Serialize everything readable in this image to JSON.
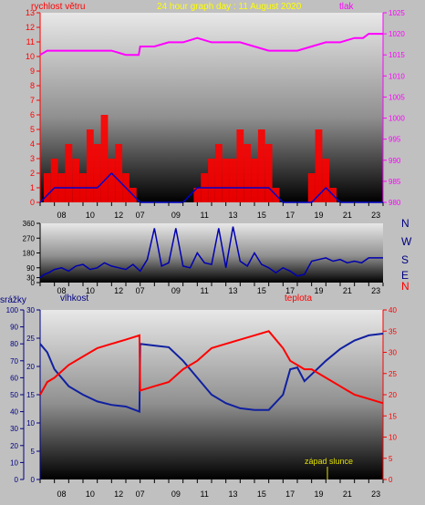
{
  "header": {
    "left_label": "rychlost větru",
    "title": "24 hour graph day : 11 August 2020",
    "right_label": "tlak"
  },
  "panel3_labels": {
    "precip": "srážky",
    "humidity": "vlhkost",
    "temp": "teplota"
  },
  "annotation": "západ slunce",
  "compass_labels": [
    "N",
    "W",
    "S",
    "E",
    "N"
  ],
  "colors": {
    "wind": "#ff0000",
    "wind_avg": "#0000cc",
    "pressure": "#ff00ff",
    "direction": "#0000b0",
    "humidity": "#1020a0",
    "temperature": "#ff0000",
    "title": "#ffff00",
    "sunset_label": "#e0e000"
  },
  "chart_data": [
    {
      "type": "line",
      "name": "wind-and-pressure",
      "x_ticks": [
        "08",
        "10",
        "12",
        "07",
        "09",
        "11",
        "13",
        "15",
        "17",
        "19",
        "21",
        "23"
      ],
      "left_axis": {
        "label": "rychlost větru",
        "ylim": [
          0,
          13
        ],
        "ticks": [
          0,
          1,
          2,
          3,
          4,
          5,
          6,
          7,
          8,
          9,
          10,
          11,
          12,
          13
        ]
      },
      "right_axis": {
        "label": "tlak",
        "ylim": [
          980,
          1025
        ],
        "ticks": [
          980,
          985,
          990,
          995,
          1000,
          1005,
          1010,
          1015,
          1020,
          1025
        ]
      },
      "series": [
        {
          "axis": "right",
          "x": [
            0,
            0.5,
            1,
            2,
            3,
            4,
            5,
            6,
            6.9,
            7,
            8,
            9,
            10,
            11,
            12,
            13,
            14,
            15,
            16,
            17,
            18,
            19,
            20,
            21,
            22,
            22.6,
            23,
            24
          ],
          "values": [
            1015,
            1016,
            1016,
            1016,
            1016,
            1016,
            1016,
            1015,
            1015,
            1017,
            1017,
            1018,
            1018,
            1019,
            1018,
            1018,
            1018,
            1017,
            1016,
            1016,
            1016,
            1017,
            1018,
            1018,
            1019,
            1019,
            1020,
            1020
          ]
        },
        {
          "axis": "left",
          "x": [
            0,
            0.5,
            1,
            1.5,
            2,
            2.5,
            3,
            3.5,
            4,
            4.5,
            5,
            5.5,
            6,
            6.5,
            7,
            7.5,
            8,
            8.5,
            9,
            9.5,
            10,
            10.5,
            11,
            11.5,
            12,
            12.5,
            13,
            13.5,
            14,
            14.5,
            15,
            15.5,
            16,
            16.5,
            17,
            17.5,
            18,
            18.5,
            19,
            19.5,
            20,
            20.5,
            21,
            21.5,
            22,
            22.5,
            23,
            23.5,
            24
          ],
          "values": [
            0,
            2,
            3,
            2,
            4,
            3,
            2,
            5,
            4,
            6,
            3,
            4,
            2,
            1,
            0,
            0,
            0,
            0,
            0,
            0,
            0,
            0,
            1,
            2,
            3,
            4,
            3,
            3,
            5,
            4,
            3,
            5,
            4,
            1,
            0,
            0,
            0,
            0,
            2,
            5,
            3,
            1,
            0,
            0,
            0,
            0,
            0,
            0,
            0
          ]
        },
        {
          "axis": "left",
          "x": [
            0,
            1,
            2,
            3,
            4,
            5,
            6,
            7,
            8,
            9,
            10,
            11,
            12,
            13,
            14,
            15,
            16,
            17,
            18,
            19,
            20,
            21,
            22,
            23,
            24
          ],
          "values": [
            0,
            1,
            1,
            1,
            1,
            2,
            1,
            0,
            0,
            0,
            0,
            1,
            1,
            1,
            1,
            1,
            1,
            0,
            0,
            0,
            1,
            0,
            0,
            0,
            0
          ]
        }
      ]
    },
    {
      "type": "line",
      "name": "wind-direction",
      "x_ticks": [
        "08",
        "10",
        "12",
        "07",
        "09",
        "11",
        "13",
        "15",
        "17",
        "19",
        "21",
        "23"
      ],
      "left_axis": {
        "ylim": [
          0,
          360
        ],
        "ticks": [
          0,
          30,
          90,
          180,
          270,
          360
        ]
      },
      "series": [
        {
          "x": [
            0,
            0.3,
            0.6,
            1,
            1.5,
            2,
            2.5,
            3,
            3.5,
            4,
            4.5,
            5,
            5.5,
            6,
            6.5,
            7,
            7.5,
            8,
            8.5,
            9,
            9.5,
            10,
            10.5,
            11,
            11.5,
            12,
            12.5,
            13,
            13.5,
            14,
            14.5,
            15,
            15.5,
            16,
            16.5,
            17,
            17.5,
            18,
            18.5,
            19,
            19.5,
            20,
            20.5,
            21,
            21.5,
            22,
            22.5,
            23,
            23.5,
            24
          ],
          "values": [
            30,
            50,
            60,
            80,
            90,
            70,
            100,
            110,
            80,
            90,
            120,
            100,
            90,
            80,
            110,
            70,
            140,
            330,
            100,
            120,
            330,
            100,
            90,
            180,
            120,
            110,
            330,
            90,
            340,
            130,
            100,
            180,
            110,
            90,
            60,
            90,
            70,
            40,
            50,
            130,
            140,
            150,
            130,
            140,
            120,
            130,
            120,
            150,
            150,
            150
          ]
        }
      ]
    },
    {
      "type": "line",
      "name": "humidity-temperature",
      "x_ticks": [
        "08",
        "10",
        "12",
        "07",
        "09",
        "11",
        "13",
        "15",
        "17",
        "19",
        "21",
        "23"
      ],
      "left_axis": {
        "label": "srážky",
        "ylim": [
          0,
          100
        ],
        "ticks": [
          0,
          10,
          20,
          30,
          40,
          50,
          60,
          70,
          80,
          90,
          100
        ]
      },
      "inner_axis": {
        "label": "vlhkost",
        "ylim": [
          0,
          30
        ],
        "ticks": [
          0,
          5,
          10,
          15,
          20,
          25,
          30
        ]
      },
      "right_axis": {
        "label": "teplota",
        "ylim": [
          0,
          40
        ],
        "ticks": [
          0,
          5,
          10,
          15,
          20,
          25,
          30,
          35,
          40
        ]
      },
      "series": [
        {
          "axis": "left",
          "x": [
            0,
            0.5,
            1,
            2,
            3,
            4,
            5,
            6,
            6.95,
            7,
            8,
            9,
            10,
            11,
            12,
            13,
            14,
            15,
            16,
            17,
            17.5,
            18,
            18.5,
            19,
            20,
            21,
            22,
            23,
            24
          ],
          "values": [
            80,
            75,
            65,
            55,
            50,
            46,
            44,
            43,
            40,
            80,
            79,
            78,
            70,
            60,
            50,
            45,
            42,
            41,
            41,
            50,
            65,
            66,
            58,
            62,
            70,
            77,
            82,
            85,
            86
          ]
        },
        {
          "axis": "right",
          "x": [
            0,
            0.5,
            1,
            2,
            3,
            4,
            5,
            6,
            6.95,
            7,
            8,
            9,
            10,
            11,
            12,
            13,
            14,
            15,
            16,
            17,
            17.5,
            18,
            18.5,
            19,
            20,
            21,
            22,
            23,
            24
          ],
          "values": [
            20,
            23,
            24,
            27,
            29,
            31,
            32,
            33,
            34,
            21,
            22,
            23,
            26,
            28,
            31,
            32,
            33,
            34,
            35,
            31,
            28,
            27,
            26,
            26,
            24,
            22,
            20,
            19,
            18
          ]
        }
      ]
    }
  ]
}
